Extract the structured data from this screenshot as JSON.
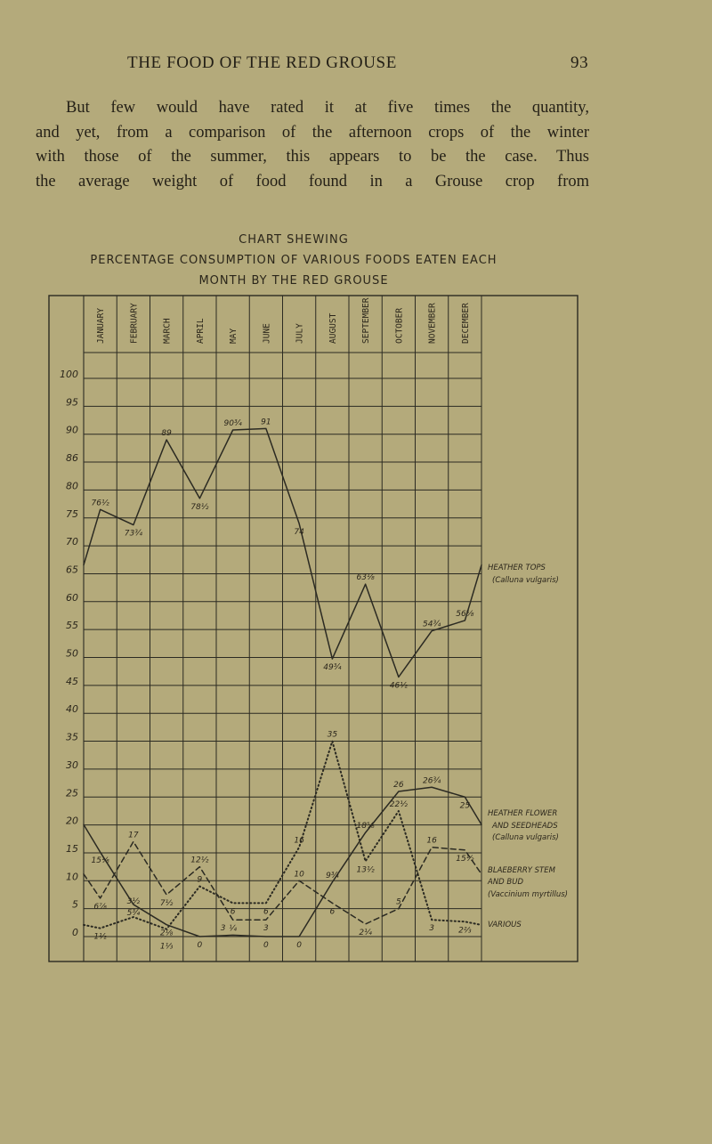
{
  "page": {
    "running_title": "THE FOOD OF THE RED GROUSE",
    "page_number": "93",
    "body_lines": [
      "But few would have rated it at five times the quantity,",
      "and yet, from a comparison of the afternoon crops of the winter",
      "with those of the summer, this appears to be the case.  Thus",
      "the average weight of food found in a Grouse crop from"
    ]
  },
  "chart_data": {
    "type": "line",
    "title_lines": [
      "CHART SHEWING",
      "PERCENTAGE CONSUMPTION OF VARIOUS FOODS EATEN EACH",
      "MONTH BY THE RED GROUSE"
    ],
    "categories": [
      "JANUARY",
      "FEBRUARY",
      "MARCH",
      "APRIL",
      "MAY",
      "JUNE",
      "JULY",
      "AUGUST",
      "SEPTEMBER",
      "OCTOBER",
      "NOVEMBER",
      "DECEMBER"
    ],
    "y_tick_labels": [
      "100",
      "95",
      "90",
      "86",
      "80",
      "75",
      "70",
      "65",
      "60",
      "55",
      "50",
      "45",
      "40",
      "35",
      "30",
      "25",
      "20",
      "15",
      "10",
      "5",
      "0"
    ],
    "ylim": [
      0,
      100
    ],
    "grid": true,
    "legend_placement": "right",
    "series": [
      {
        "name": "HEATHER TOPS (Calluna vulgaris)",
        "legend_lines": [
          "HEATHER TOPS",
          "(Calluna vulgaris)"
        ],
        "style": "solid",
        "values": [
          76.5,
          73.75,
          89,
          78.5,
          90.75,
          91,
          74,
          49.75,
          63.125,
          46.5,
          54.75,
          56.625
        ],
        "labels": [
          "76½",
          "73¾",
          "89",
          "78½",
          "90¾",
          "91",
          "74",
          "49¾",
          "63⅛",
          "46½",
          "54¾",
          "56⅝"
        ]
      },
      {
        "name": "HEATHER FLOWER AND SEEDHEADS (Calluna vulgaris)",
        "legend_lines": [
          "HEATHER FLOWER",
          "AND SEEDHEADS",
          "(Calluna vulgaris)"
        ],
        "style": "solid",
        "values": [
          15.125,
          5.75,
          2.125,
          0,
          0.25,
          0,
          0,
          9.75,
          18.625,
          26,
          26.75,
          25
        ],
        "labels": [
          "15⅛",
          "5¾",
          "2⅛",
          "0",
          "¼",
          "0",
          "0",
          "9¾",
          "18⅝",
          "26",
          "26¾",
          "25"
        ]
      },
      {
        "name": "BLAEBERRY STEM AND BUD (Vaccinium myrtillus)",
        "legend_lines": [
          "BLAEBERRY STEM",
          "AND BUD",
          "(Vaccinium myrtillus)"
        ],
        "style": "dashed",
        "values": [
          6.875,
          17,
          7.5,
          12.5,
          3,
          3,
          10,
          6,
          2.25,
          5,
          16,
          15.5
        ],
        "labels": [
          "6⅞",
          "17",
          "7½",
          "12½",
          "3",
          "3",
          "10",
          "6",
          "2¼",
          "5",
          "16",
          "15½"
        ]
      },
      {
        "name": "VARIOUS",
        "legend_lines": [
          "VARIOUS"
        ],
        "style": "dotted",
        "values": [
          1.5,
          3.5,
          1.333,
          9,
          6,
          6,
          16,
          35,
          13.5,
          22.5,
          3,
          2.667
        ],
        "labels": [
          "1½",
          "3½",
          "1⅓",
          "9",
          "6",
          "6",
          "16",
          "35",
          "13½",
          "22½",
          "3",
          "2⅔"
        ]
      }
    ]
  }
}
